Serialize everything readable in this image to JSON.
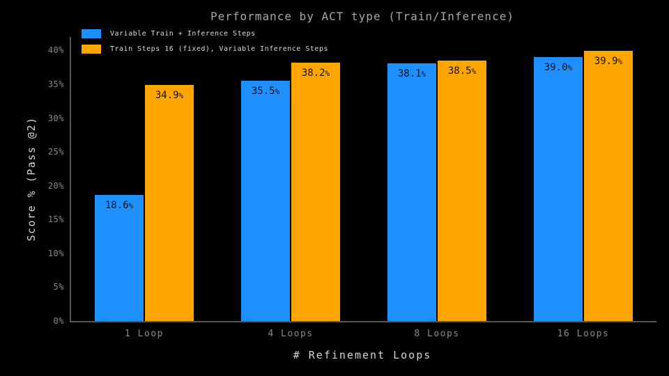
{
  "chart_data": {
    "type": "bar",
    "title": "Performance by ACT type (Train/Inference)",
    "xlabel": "# Refinement Loops",
    "ylabel": "Score % (Pass @2)",
    "categories": [
      "1 Loop",
      "4 Loops",
      "8 Loops",
      "16 Loops"
    ],
    "series": [
      {
        "name": "Variable Train + Inference Steps",
        "color": "#1E90FF",
        "values": [
          18.6,
          35.5,
          38.1,
          39.0
        ]
      },
      {
        "name": "Train Steps 16 (fixed), Variable Inference Steps",
        "color": "#FFA500",
        "values": [
          34.9,
          38.2,
          38.5,
          39.9
        ]
      }
    ],
    "value_suffix": "%",
    "y_ticks": [
      {
        "value": 0,
        "label": "0%"
      },
      {
        "value": 5,
        "label": "5%"
      },
      {
        "value": 10,
        "label": "10%"
      },
      {
        "value": 15,
        "label": "15%"
      },
      {
        "value": 20,
        "label": "20%"
      },
      {
        "value": 25,
        "label": "25%"
      },
      {
        "value": 30,
        "label": "30%"
      },
      {
        "value": 35,
        "label": "35%"
      },
      {
        "value": 40,
        "label": "40%"
      }
    ],
    "ylim": [
      0,
      42
    ],
    "grid": false,
    "legend_position": "upper-left",
    "colors": {
      "background": "#000000",
      "axis": "#575757",
      "tick_text": "#8a8a8a",
      "title_text": "#a8a8a8",
      "axis_label_text": "#d6d6d6",
      "legend_text": "#dcdcdc",
      "bar_label_text": "#101010"
    }
  }
}
